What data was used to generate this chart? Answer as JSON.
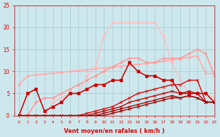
{
  "xlabel": "Vent moyen/en rafales ( km/h )",
  "ylabel": "",
  "xlim": [
    -0.5,
    23
  ],
  "ylim": [
    0,
    25
  ],
  "background_color": "#cde8ed",
  "grid_color": "#a8cdd4",
  "lines": [
    {
      "x": [
        0,
        1,
        2,
        3,
        4,
        5,
        6,
        7,
        8,
        9,
        10,
        11,
        12,
        13,
        14,
        15,
        16,
        17,
        18,
        19,
        20,
        21,
        22,
        23
      ],
      "y": [
        7.0,
        9.0,
        9.2,
        9.4,
        9.6,
        9.8,
        10.0,
        10.2,
        10.4,
        10.6,
        10.8,
        11.0,
        11.2,
        11.4,
        11.6,
        11.8,
        12.0,
        12.3,
        12.6,
        12.9,
        13.2,
        13.5,
        9.5,
        9.5
      ],
      "color": "#ffaaaa",
      "lw": 1.2,
      "marker": "D",
      "ms": 2.0
    },
    {
      "x": [
        0,
        1,
        2,
        3,
        4,
        5,
        6,
        7,
        8,
        9,
        10,
        11,
        12,
        13,
        14,
        15,
        16,
        17,
        18,
        19,
        20,
        21,
        22,
        23
      ],
      "y": [
        0,
        0,
        3,
        4,
        4,
        5,
        6,
        7,
        8,
        9,
        10,
        11,
        12,
        13,
        13,
        12,
        12,
        13,
        13,
        13,
        14,
        15,
        14,
        9
      ],
      "color": "#ff9999",
      "lw": 1.2,
      "marker": "D",
      "ms": 2.0
    },
    {
      "x": [
        0,
        1,
        2,
        3,
        4,
        5,
        6,
        7,
        8,
        9,
        10,
        11,
        12,
        13,
        14,
        15,
        16,
        17,
        18,
        19,
        20,
        21,
        22,
        23
      ],
      "y": [
        0,
        0,
        0,
        0,
        3,
        4,
        5,
        5,
        9,
        11,
        18,
        21,
        21,
        21,
        21,
        21,
        21,
        18,
        12,
        8,
        5,
        5,
        5,
        4
      ],
      "color": "#ffbbbb",
      "lw": 1.0,
      "marker": "D",
      "ms": 2.0
    },
    {
      "x": [
        0,
        1,
        2,
        3,
        4,
        5,
        6,
        7,
        8,
        9,
        10,
        11,
        12,
        13,
        14,
        15,
        16,
        17,
        18,
        19,
        20,
        21,
        22,
        23
      ],
      "y": [
        0,
        5,
        6,
        1,
        2,
        3,
        5,
        5,
        6,
        7,
        7,
        8,
        8,
        12,
        10,
        9,
        9,
        8,
        8,
        5,
        5,
        5,
        5,
        3
      ],
      "color": "#cc0000",
      "lw": 1.2,
      "marker": "s",
      "ms": 2.5
    },
    {
      "x": [
        0,
        1,
        2,
        3,
        4,
        5,
        6,
        7,
        8,
        9,
        10,
        11,
        12,
        13,
        14,
        15,
        16,
        17,
        18,
        19,
        20,
        21,
        22,
        23
      ],
      "y": [
        0,
        0,
        0,
        0,
        0,
        0,
        0,
        0,
        0.5,
        1,
        1.5,
        2,
        3,
        4,
        5,
        5.5,
        6,
        6.5,
        7,
        7,
        8,
        8,
        3,
        3
      ],
      "color": "#dd0000",
      "lw": 1.0,
      "marker": "x",
      "ms": 2.5
    },
    {
      "x": [
        0,
        1,
        2,
        3,
        4,
        5,
        6,
        7,
        8,
        9,
        10,
        11,
        12,
        13,
        14,
        15,
        16,
        17,
        18,
        19,
        20,
        21,
        22,
        23
      ],
      "y": [
        0,
        0,
        0,
        0,
        0,
        0,
        0,
        0,
        0,
        0.5,
        1,
        1.5,
        2,
        3,
        3.5,
        4,
        4.5,
        5,
        5.5,
        5,
        5.5,
        5,
        3,
        3
      ],
      "color": "#bb0000",
      "lw": 1.0,
      "marker": "x",
      "ms": 2.5
    },
    {
      "x": [
        0,
        1,
        2,
        3,
        4,
        5,
        6,
        7,
        8,
        9,
        10,
        11,
        12,
        13,
        14,
        15,
        16,
        17,
        18,
        19,
        20,
        21,
        22,
        23
      ],
      "y": [
        0,
        0,
        0,
        0,
        0,
        0,
        0,
        0,
        0,
        0,
        0.5,
        1,
        1.5,
        2,
        2.5,
        3,
        3.5,
        4,
        4.5,
        4,
        4.5,
        4,
        3,
        3
      ],
      "color": "#aa0000",
      "lw": 1.0,
      "marker": "x",
      "ms": 2.5
    },
    {
      "x": [
        0,
        1,
        2,
        3,
        4,
        5,
        6,
        7,
        8,
        9,
        10,
        11,
        12,
        13,
        14,
        15,
        16,
        17,
        18,
        19,
        20,
        21,
        22,
        23
      ],
      "y": [
        0,
        0,
        0,
        0,
        0,
        0,
        0,
        0,
        0,
        0,
        0,
        0.5,
        1,
        1.5,
        2,
        2.5,
        3,
        3.5,
        4,
        4,
        4.5,
        4,
        3,
        3
      ],
      "color": "#990000",
      "lw": 1.0,
      "marker": "x",
      "ms": 2.5
    }
  ]
}
